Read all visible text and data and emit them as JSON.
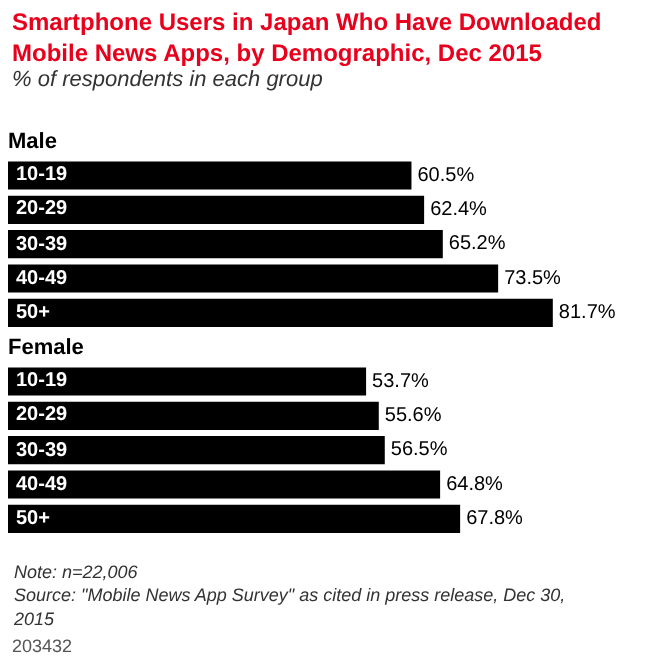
{
  "chart_data": {
    "type": "bar",
    "orientation": "horizontal",
    "title": "Smartphone Users in Japan Who Have Downloaded Mobile News Apps, by Demographic, Dec 2015",
    "subtitle": "% of respondents in each group",
    "categories": [
      "Male",
      "10-19",
      "20-29",
      "30-39",
      "40-49",
      "50+",
      "Female",
      "10-19",
      "20-29",
      "30-39",
      "40-49",
      "50+"
    ],
    "values": [
      null,
      60.5,
      62.4,
      65.2,
      73.5,
      81.7,
      null,
      53.7,
      55.6,
      56.5,
      64.8,
      67.8
    ],
    "value_labels": [
      null,
      "60.5%",
      "62.4%",
      "65.2%",
      "73.5%",
      "81.7%",
      null,
      "53.7%",
      "55.6%",
      "56.5%",
      "64.8%",
      "67.8%"
    ],
    "color": "#000000",
    "legend": false,
    "annotations": [
      "Note: n=22,006",
      "Source: \"Mobile News App Survey\" as cited in press release, Dec 30, 2015",
      "203432"
    ]
  }
}
